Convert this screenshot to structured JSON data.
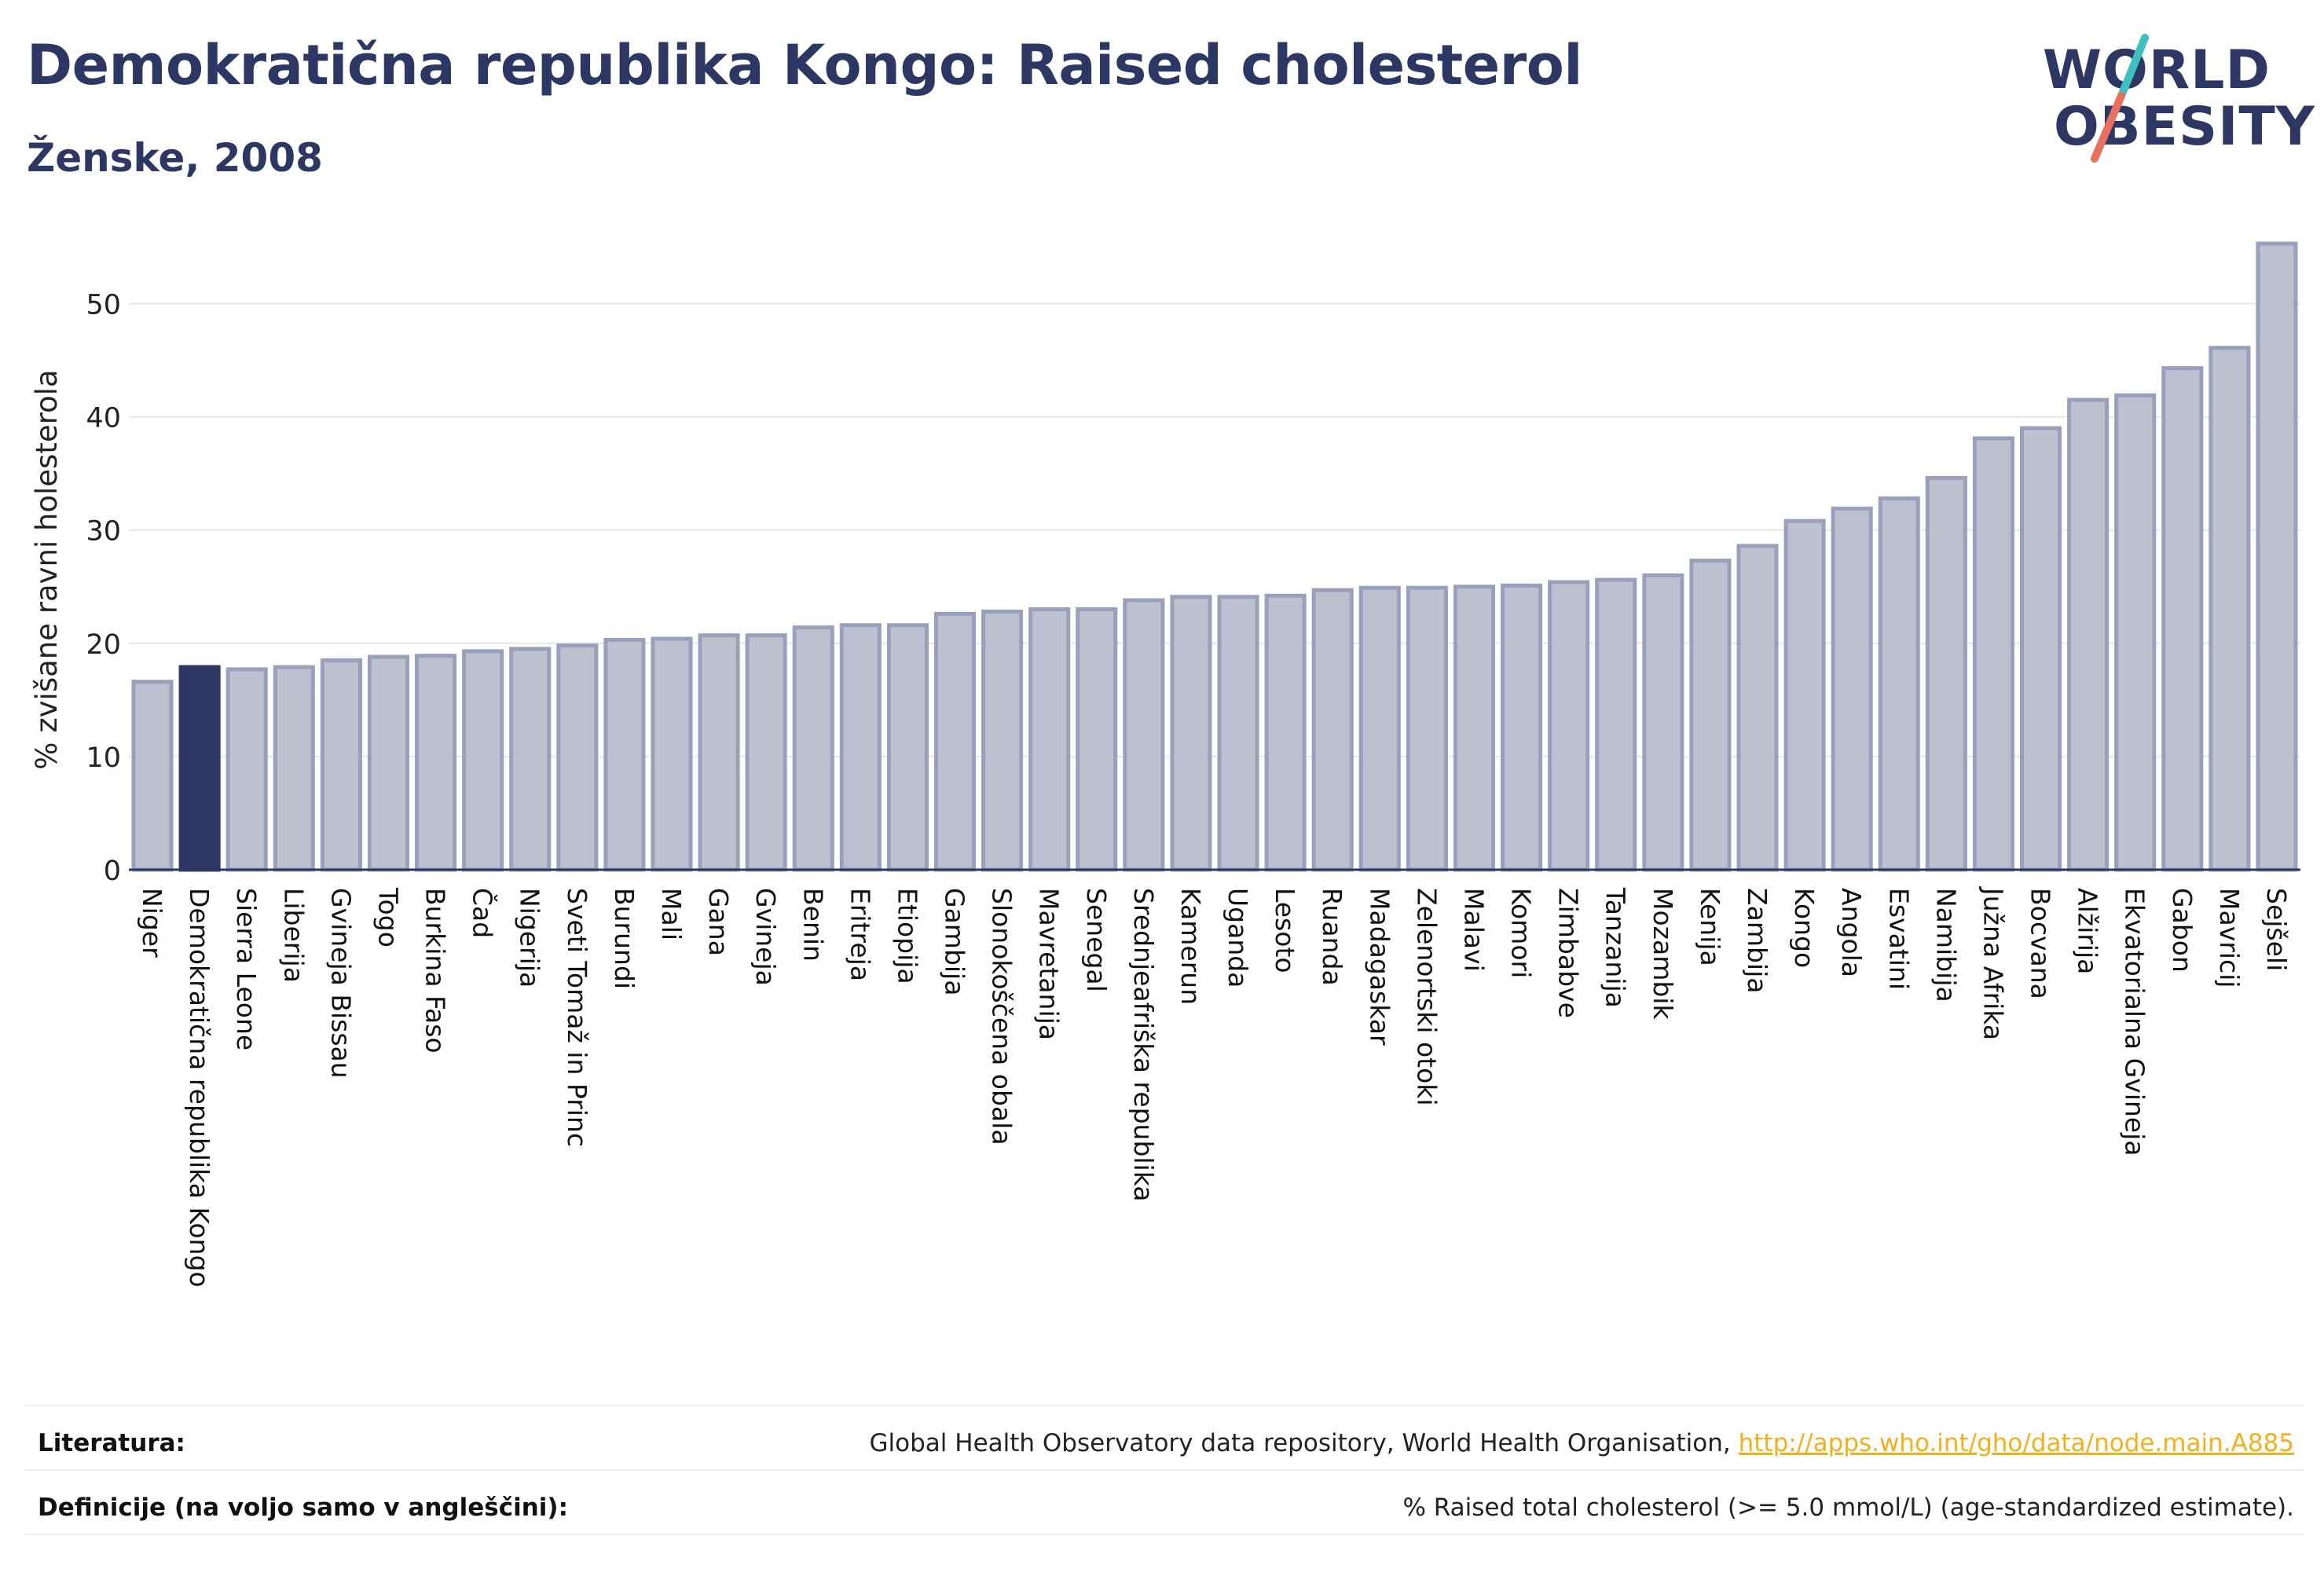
{
  "header": {
    "title": "Demokratična republika Kongo: Raised cholesterol",
    "subtitle": "Ženske, 2008"
  },
  "logo": {
    "line1": "WORLD",
    "line2": "OBESITY"
  },
  "colors": {
    "highlight": "#2d3763",
    "bar_fill": "#bcc0cf",
    "bar_stroke": "#9aa0bb",
    "grid": "#e6e6ee",
    "logo_teal": "#3fbfbf",
    "logo_coral": "#e8705f",
    "link": "#f2b01e"
  },
  "chart_data": {
    "type": "bar",
    "title": "Demokratična republika Kongo: Raised cholesterol",
    "subtitle": "Ženske, 2008",
    "ylabel": "% zvišane ravni holesterola",
    "xlabel": "",
    "ylim": [
      0,
      56
    ],
    "yticks": [
      0,
      10,
      20,
      30,
      40,
      50
    ],
    "grid": true,
    "legend": "none",
    "highlight": "Demokratična republika Kongo",
    "categories": [
      "Niger",
      "Demokratična republika Kongo",
      "Sierra Leone",
      "Liberija",
      "Gvineja Bissau",
      "Togo",
      "Burkina Faso",
      "Čad",
      "Nigerija",
      "Sveti Tomaž in Princ",
      "Burundi",
      "Mali",
      "Gana",
      "Gvineja",
      "Benin",
      "Eritreja",
      "Etiopija",
      "Gambija",
      "Slonokoščena obala",
      "Mavretanija",
      "Senegal",
      "Srednjeafriška republika",
      "Kamerun",
      "Uganda",
      "Lesoto",
      "Ruanda",
      "Madagaskar",
      "Zelenortski otoki",
      "Malavi",
      "Komori",
      "Zimbabve",
      "Tanzanija",
      "Mozambik",
      "Kenija",
      "Zambija",
      "Kongo",
      "Angola",
      "Esvatini",
      "Namibija",
      "Južna Afrika",
      "Bocvana",
      "Alžirija",
      "Ekvatorialna Gvineja",
      "Gabon",
      "Mavricij",
      "Sejšeli"
    ],
    "values": [
      16.6,
      17.9,
      17.7,
      17.9,
      18.5,
      18.8,
      18.9,
      19.3,
      19.5,
      19.8,
      20.3,
      20.4,
      20.7,
      20.7,
      21.4,
      21.6,
      21.6,
      22.6,
      22.8,
      23.0,
      23.0,
      23.8,
      24.1,
      24.1,
      24.2,
      24.7,
      24.9,
      24.9,
      25.0,
      25.1,
      25.4,
      25.6,
      26.0,
      27.3,
      28.6,
      30.8,
      31.9,
      32.8,
      34.6,
      38.1,
      39.0,
      41.5,
      41.9,
      44.3,
      46.1,
      55.3
    ]
  },
  "footer": {
    "sources_label": "Literatura:",
    "sources_text": "Global Health Observatory data repository, World Health Organisation,",
    "sources_link": "http://apps.who.int/gho/data/node.main.A885",
    "definitions_label": "Definicije (na voljo samo v angleščini):",
    "definitions_text": "% Raised total cholesterol (>= 5.0 mmol/L) (age-standardized estimate)."
  }
}
